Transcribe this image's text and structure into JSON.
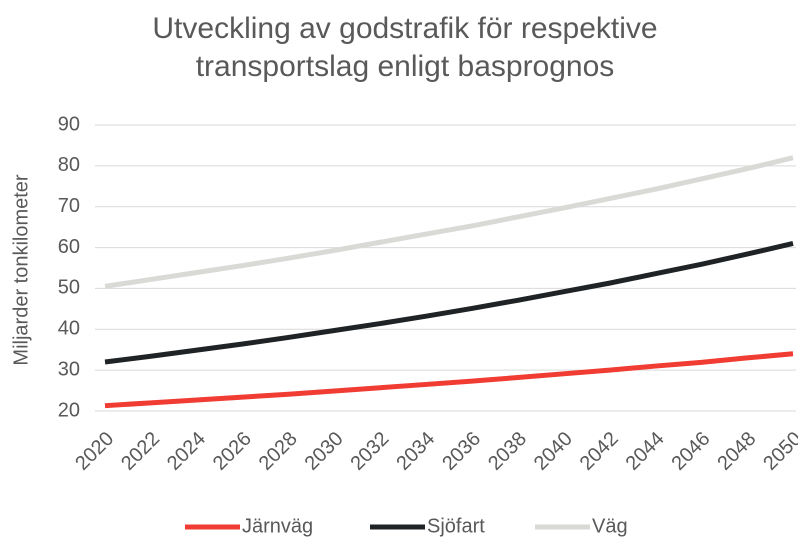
{
  "chart_data": {
    "type": "line",
    "title": "Utveckling av godstrafik för respektive transportslag enligt basprognos",
    "ylabel": "Miljarder tonkilometer",
    "x": [
      2020,
      2022,
      2024,
      2026,
      2028,
      2030,
      2032,
      2034,
      2036,
      2038,
      2040,
      2042,
      2044,
      2046,
      2048,
      2050
    ],
    "series": [
      {
        "name": "Järnväg",
        "color": "#f03c32",
        "values": [
          21.3,
          22.0,
          22.7,
          23.4,
          24.1,
          24.9,
          25.7,
          26.5,
          27.3,
          28.2,
          29.1,
          30.0,
          31.0,
          31.9,
          33.0,
          34.0
        ]
      },
      {
        "name": "Sjöfart",
        "color": "#1f2326",
        "values": [
          32.0,
          33.4,
          34.9,
          36.4,
          38.0,
          39.7,
          41.4,
          43.2,
          45.1,
          47.1,
          49.2,
          51.3,
          53.6,
          55.9,
          58.4,
          61.0
        ]
      },
      {
        "name": "Väg",
        "color": "#d9d9d6",
        "values": [
          50.5,
          52.2,
          53.9,
          55.6,
          57.4,
          59.3,
          61.3,
          63.3,
          65.3,
          67.5,
          69.7,
          72.0,
          74.3,
          76.8,
          79.3,
          82.0
        ]
      }
    ],
    "xlim": [
      2020,
      2050
    ],
    "xticks": [
      2020,
      2022,
      2024,
      2026,
      2028,
      2030,
      2032,
      2034,
      2036,
      2038,
      2040,
      2042,
      2044,
      2046,
      2048,
      2050
    ],
    "ylim": [
      20,
      90
    ],
    "yticks": [
      20,
      30,
      40,
      50,
      60,
      70,
      80,
      90
    ],
    "grid": true,
    "legend": "bottom"
  }
}
